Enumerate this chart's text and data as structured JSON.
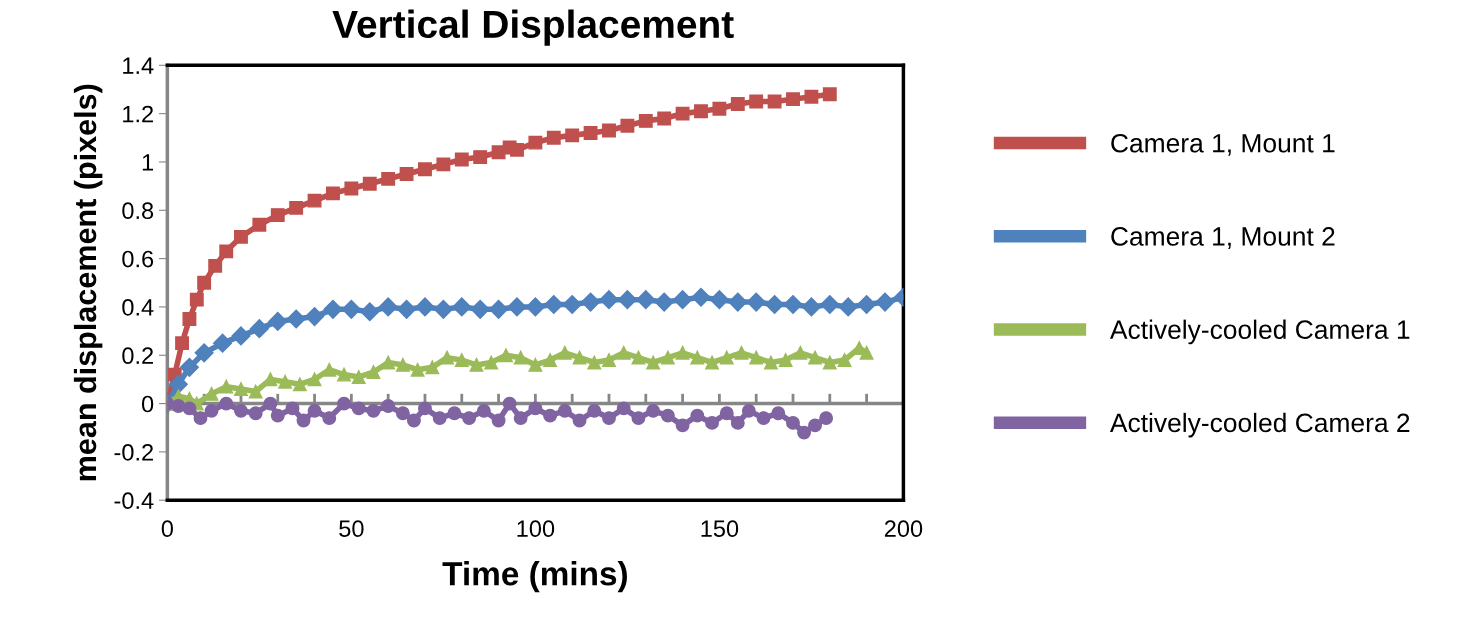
{
  "chart_data": {
    "type": "line",
    "title": "Vertical Displacement",
    "xlabel": "Time (mins)",
    "ylabel": "mean displacement (pixels)",
    "xlim": [
      0,
      200
    ],
    "ylim": [
      -0.4,
      1.4
    ],
    "xticks": [
      0,
      {
        "value": 10,
        "label": null
      },
      {
        "value": 20,
        "label": null
      },
      {
        "value": 30,
        "label": null
      },
      {
        "value": 40,
        "label": null
      },
      50,
      {
        "value": 60,
        "label": null
      },
      {
        "value": 70,
        "label": null
      },
      {
        "value": 80,
        "label": null
      },
      {
        "value": 90,
        "label": null
      },
      100,
      {
        "value": 110,
        "label": null
      },
      {
        "value": 120,
        "label": null
      },
      {
        "value": 130,
        "label": null
      },
      {
        "value": 140,
        "label": null
      },
      150,
      {
        "value": 160,
        "label": null
      },
      {
        "value": 170,
        "label": null
      },
      {
        "value": 180,
        "label": null
      },
      {
        "value": 190,
        "label": null
      },
      200
    ],
    "yticks": [
      -0.4,
      -0.2,
      0,
      0.2,
      0.4,
      0.6,
      0.8,
      1,
      1.2,
      1.4
    ],
    "grid": false,
    "legend": "right",
    "ref_lines": [
      {
        "axis": "y",
        "value": 0,
        "color": "#868686"
      }
    ],
    "series": [
      {
        "name": "Camera 1, Mount 1",
        "color": "#c0504d",
        "marker": "square",
        "x": [
          0,
          2,
          4,
          6,
          8,
          10,
          13,
          16,
          20,
          25,
          30,
          35,
          40,
          45,
          50,
          55,
          60,
          65,
          70,
          75,
          80,
          85,
          90,
          93,
          95,
          100,
          105,
          110,
          115,
          120,
          125,
          130,
          135,
          140,
          145,
          150,
          155,
          160,
          165,
          170,
          175,
          180
        ],
        "values": [
          0,
          0.12,
          0.25,
          0.35,
          0.43,
          0.5,
          0.57,
          0.63,
          0.69,
          0.74,
          0.78,
          0.81,
          0.84,
          0.87,
          0.89,
          0.91,
          0.93,
          0.95,
          0.97,
          0.99,
          1.01,
          1.02,
          1.04,
          1.06,
          1.05,
          1.08,
          1.1,
          1.11,
          1.12,
          1.13,
          1.15,
          1.17,
          1.18,
          1.2,
          1.21,
          1.22,
          1.24,
          1.25,
          1.25,
          1.26,
          1.27,
          1.28
        ]
      },
      {
        "name": "Camera 1, Mount 2",
        "color": "#4f81bd",
        "marker": "diamond",
        "x": [
          0,
          3,
          6,
          10,
          15,
          20,
          25,
          30,
          35,
          40,
          45,
          50,
          55,
          60,
          65,
          70,
          75,
          80,
          85,
          90,
          95,
          100,
          105,
          110,
          115,
          120,
          125,
          130,
          135,
          140,
          145,
          150,
          155,
          160,
          165,
          170,
          175,
          180,
          185,
          190,
          195,
          200
        ],
        "values": [
          0,
          0.08,
          0.15,
          0.21,
          0.25,
          0.28,
          0.31,
          0.34,
          0.35,
          0.36,
          0.39,
          0.39,
          0.38,
          0.4,
          0.39,
          0.4,
          0.39,
          0.4,
          0.39,
          0.39,
          0.4,
          0.4,
          0.41,
          0.41,
          0.42,
          0.43,
          0.43,
          0.43,
          0.42,
          0.43,
          0.44,
          0.43,
          0.42,
          0.42,
          0.41,
          0.41,
          0.4,
          0.41,
          0.4,
          0.41,
          0.42,
          0.44
        ]
      },
      {
        "name": "Actively-cooled Camera 1",
        "color": "#9bbb59",
        "marker": "triangle",
        "x": [
          0,
          3,
          6,
          8,
          12,
          16,
          20,
          24,
          28,
          32,
          36,
          40,
          44,
          48,
          52,
          56,
          60,
          64,
          68,
          72,
          76,
          80,
          84,
          88,
          92,
          96,
          100,
          104,
          108,
          112,
          116,
          120,
          124,
          128,
          132,
          136,
          140,
          144,
          148,
          152,
          156,
          160,
          164,
          168,
          172,
          176,
          180,
          184,
          188,
          190
        ],
        "values": [
          0,
          0.03,
          0.02,
          0,
          0.04,
          0.07,
          0.06,
          0.05,
          0.1,
          0.09,
          0.08,
          0.1,
          0.14,
          0.12,
          0.11,
          0.13,
          0.17,
          0.16,
          0.14,
          0.15,
          0.19,
          0.18,
          0.16,
          0.17,
          0.2,
          0.19,
          0.16,
          0.18,
          0.21,
          0.19,
          0.17,
          0.18,
          0.21,
          0.19,
          0.17,
          0.19,
          0.21,
          0.19,
          0.17,
          0.19,
          0.21,
          0.19,
          0.17,
          0.18,
          0.21,
          0.19,
          0.17,
          0.18,
          0.23,
          0.21
        ]
      },
      {
        "name": "Actively-cooled Camera 2",
        "color": "#8064a2",
        "marker": "circle",
        "x": [
          0,
          3,
          6,
          9,
          12,
          16,
          20,
          24,
          28,
          30,
          34,
          37,
          40,
          44,
          48,
          52,
          56,
          60,
          64,
          67,
          70,
          74,
          78,
          82,
          86,
          90,
          93,
          96,
          100,
          104,
          108,
          112,
          116,
          120,
          124,
          128,
          132,
          136,
          140,
          144,
          148,
          152,
          155,
          158,
          162,
          166,
          170,
          173,
          176,
          179
        ],
        "values": [
          0,
          -0.01,
          -0.02,
          -0.06,
          -0.03,
          0,
          -0.03,
          -0.04,
          0,
          -0.05,
          -0.02,
          -0.07,
          -0.03,
          -0.06,
          0,
          -0.02,
          -0.03,
          -0.01,
          -0.04,
          -0.07,
          -0.02,
          -0.06,
          -0.04,
          -0.06,
          -0.03,
          -0.07,
          0,
          -0.06,
          -0.02,
          -0.05,
          -0.03,
          -0.07,
          -0.03,
          -0.06,
          -0.02,
          -0.06,
          -0.03,
          -0.05,
          -0.09,
          -0.05,
          -0.08,
          -0.04,
          -0.08,
          -0.03,
          -0.06,
          -0.04,
          -0.08,
          -0.12,
          -0.09,
          -0.06
        ]
      }
    ]
  }
}
